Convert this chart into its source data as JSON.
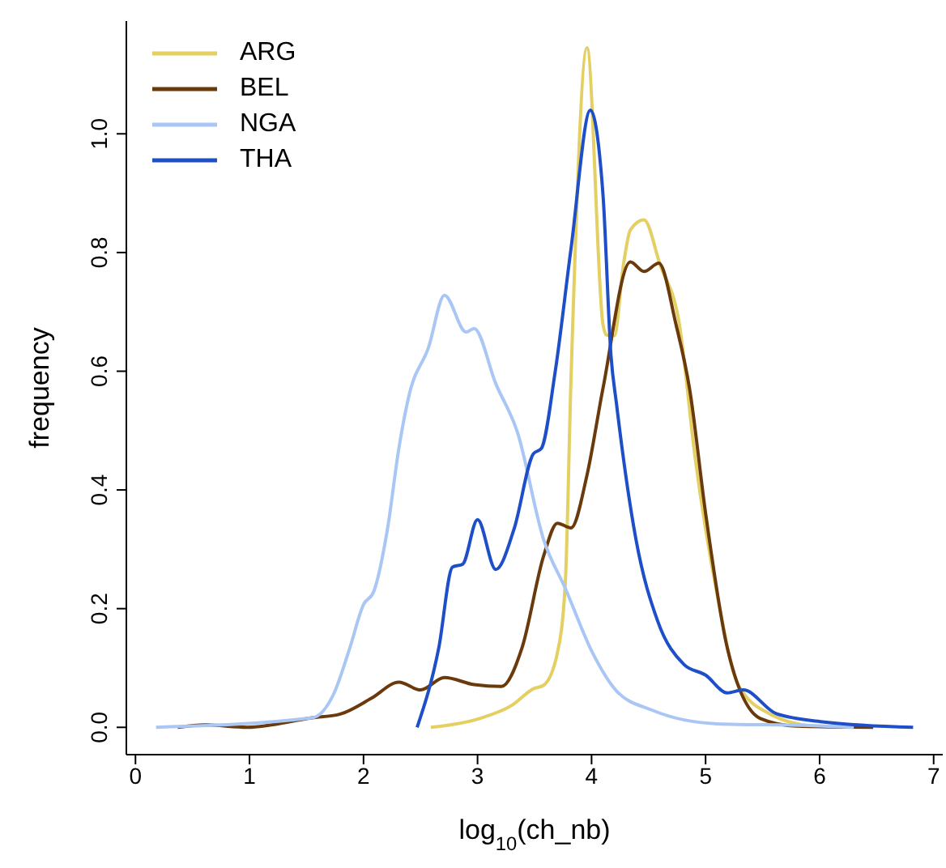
{
  "chart_data": {
    "type": "line",
    "xlabel": "log$_{10}$(ch_nb)",
    "ylabel": "frequency",
    "xlim": [
      -0.08,
      7.08
    ],
    "ylim": [
      -0.046,
      1.19
    ],
    "xticks": [
      0,
      1,
      2,
      3,
      4,
      5,
      6,
      7
    ],
    "yticks": [
      {
        "value": 0,
        "label": "0.0"
      },
      {
        "value": 0.2,
        "label": "0.2"
      },
      {
        "value": 0.4,
        "label": "0.4"
      },
      {
        "value": 0.6,
        "label": "0.6"
      },
      {
        "value": 0.8,
        "label": "0.8"
      },
      {
        "value": 1,
        "label": "1.0"
      }
    ],
    "grid": false,
    "legend": "top left",
    "marker": "none",
    "line_style": "solid",
    "series": [
      {
        "name": "ARG",
        "color": "#e3cf62",
        "x": [
          2.59,
          3.02,
          3.3,
          3.49,
          3.58,
          3.7,
          3.77,
          3.82,
          3.96,
          4.1,
          4.13,
          4.2,
          4.28,
          4.34,
          4.46,
          4.6,
          4.77,
          4.91,
          5.1,
          5.29,
          5.57,
          5.95,
          6.2
        ],
        "values": [
          0,
          0.015,
          0.037,
          0.065,
          0.071,
          0.125,
          0.245,
          0.589,
          1.145,
          0.679,
          0.661,
          0.66,
          0.78,
          0.838,
          0.855,
          0.78,
          0.679,
          0.452,
          0.225,
          0.07,
          0.022,
          0.002,
          0
        ]
      },
      {
        "name": "BEL",
        "color": "#6b3a0c",
        "x": [
          0.37,
          0.61,
          0.98,
          1.55,
          1.79,
          2.07,
          2.31,
          2.5,
          2.71,
          2.97,
          3.21,
          3.39,
          3.58,
          3.7,
          3.82,
          3.96,
          4.1,
          4.34,
          4.46,
          4.59,
          4.74,
          4.86,
          5.0,
          5.19,
          5.48,
          5.8,
          6.47
        ],
        "values": [
          0,
          0.004,
          0,
          0.016,
          0.022,
          0.049,
          0.076,
          0.063,
          0.084,
          0.072,
          0.069,
          0.134,
          0.289,
          0.344,
          0.336,
          0.425,
          0.571,
          0.784,
          0.768,
          0.782,
          0.679,
          0.57,
          0.361,
          0.134,
          0.015,
          0.002,
          0
        ]
      },
      {
        "name": "NGA",
        "color": "#aac6f5",
        "x": [
          0.18,
          1.55,
          1.74,
          1.88,
          2.0,
          2.09,
          2.21,
          2.31,
          2.4,
          2.57,
          2.71,
          2.9,
          2.97,
          3.16,
          3.35,
          3.58,
          3.77,
          4.01,
          4.22,
          4.53,
          5.1,
          5.9,
          6.3
        ],
        "values": [
          0,
          0.016,
          0.057,
          0.134,
          0.207,
          0.229,
          0.334,
          0.47,
          0.56,
          0.64,
          0.728,
          0.666,
          0.672,
          0.579,
          0.497,
          0.316,
          0.234,
          0.125,
          0.061,
          0.029,
          0.006,
          0.003,
          0
        ]
      },
      {
        "name": "THA",
        "color": "#1f4fc8",
        "x": [
          2.47,
          2.66,
          2.78,
          2.87,
          3.0,
          3.16,
          3.32,
          3.49,
          3.56,
          3.68,
          3.82,
          3.99,
          4.1,
          4.17,
          4.22,
          4.39,
          4.58,
          4.81,
          5.0,
          5.19,
          5.33,
          5.62,
          6.04,
          6.82
        ],
        "values": [
          0,
          0.134,
          0.27,
          0.275,
          0.35,
          0.266,
          0.334,
          0.461,
          0.47,
          0.598,
          0.807,
          1.04,
          0.898,
          0.627,
          0.543,
          0.316,
          0.179,
          0.106,
          0.088,
          0.058,
          0.063,
          0.023,
          0.009,
          0
        ]
      }
    ]
  }
}
